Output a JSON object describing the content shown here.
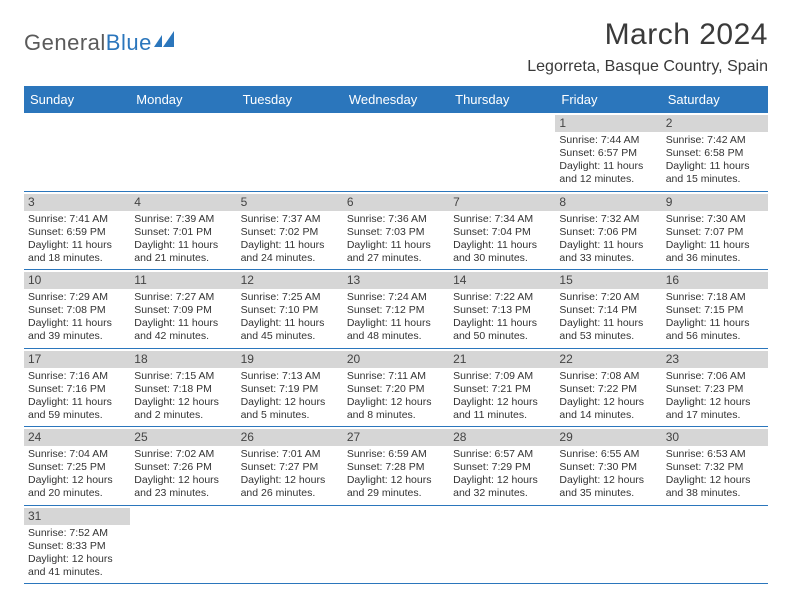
{
  "logo": {
    "text1": "General",
    "text2": "Blue"
  },
  "title": "March 2024",
  "location": "Legorreta, Basque Country, Spain",
  "colors": {
    "accent": "#2b76bc",
    "daybar": "#d6d6d6",
    "text": "#333333",
    "bg": "#ffffff"
  },
  "day_headers": [
    "Sunday",
    "Monday",
    "Tuesday",
    "Wednesday",
    "Thursday",
    "Friday",
    "Saturday"
  ],
  "weeks": [
    [
      null,
      null,
      null,
      null,
      null,
      {
        "day": "1",
        "sunrise": "Sunrise: 7:44 AM",
        "sunset": "Sunset: 6:57 PM",
        "daylight1": "Daylight: 11 hours",
        "daylight2": "and 12 minutes."
      },
      {
        "day": "2",
        "sunrise": "Sunrise: 7:42 AM",
        "sunset": "Sunset: 6:58 PM",
        "daylight1": "Daylight: 11 hours",
        "daylight2": "and 15 minutes."
      }
    ],
    [
      {
        "day": "3",
        "sunrise": "Sunrise: 7:41 AM",
        "sunset": "Sunset: 6:59 PM",
        "daylight1": "Daylight: 11 hours",
        "daylight2": "and 18 minutes."
      },
      {
        "day": "4",
        "sunrise": "Sunrise: 7:39 AM",
        "sunset": "Sunset: 7:01 PM",
        "daylight1": "Daylight: 11 hours",
        "daylight2": "and 21 minutes."
      },
      {
        "day": "5",
        "sunrise": "Sunrise: 7:37 AM",
        "sunset": "Sunset: 7:02 PM",
        "daylight1": "Daylight: 11 hours",
        "daylight2": "and 24 minutes."
      },
      {
        "day": "6",
        "sunrise": "Sunrise: 7:36 AM",
        "sunset": "Sunset: 7:03 PM",
        "daylight1": "Daylight: 11 hours",
        "daylight2": "and 27 minutes."
      },
      {
        "day": "7",
        "sunrise": "Sunrise: 7:34 AM",
        "sunset": "Sunset: 7:04 PM",
        "daylight1": "Daylight: 11 hours",
        "daylight2": "and 30 minutes."
      },
      {
        "day": "8",
        "sunrise": "Sunrise: 7:32 AM",
        "sunset": "Sunset: 7:06 PM",
        "daylight1": "Daylight: 11 hours",
        "daylight2": "and 33 minutes."
      },
      {
        "day": "9",
        "sunrise": "Sunrise: 7:30 AM",
        "sunset": "Sunset: 7:07 PM",
        "daylight1": "Daylight: 11 hours",
        "daylight2": "and 36 minutes."
      }
    ],
    [
      {
        "day": "10",
        "sunrise": "Sunrise: 7:29 AM",
        "sunset": "Sunset: 7:08 PM",
        "daylight1": "Daylight: 11 hours",
        "daylight2": "and 39 minutes."
      },
      {
        "day": "11",
        "sunrise": "Sunrise: 7:27 AM",
        "sunset": "Sunset: 7:09 PM",
        "daylight1": "Daylight: 11 hours",
        "daylight2": "and 42 minutes."
      },
      {
        "day": "12",
        "sunrise": "Sunrise: 7:25 AM",
        "sunset": "Sunset: 7:10 PM",
        "daylight1": "Daylight: 11 hours",
        "daylight2": "and 45 minutes."
      },
      {
        "day": "13",
        "sunrise": "Sunrise: 7:24 AM",
        "sunset": "Sunset: 7:12 PM",
        "daylight1": "Daylight: 11 hours",
        "daylight2": "and 48 minutes."
      },
      {
        "day": "14",
        "sunrise": "Sunrise: 7:22 AM",
        "sunset": "Sunset: 7:13 PM",
        "daylight1": "Daylight: 11 hours",
        "daylight2": "and 50 minutes."
      },
      {
        "day": "15",
        "sunrise": "Sunrise: 7:20 AM",
        "sunset": "Sunset: 7:14 PM",
        "daylight1": "Daylight: 11 hours",
        "daylight2": "and 53 minutes."
      },
      {
        "day": "16",
        "sunrise": "Sunrise: 7:18 AM",
        "sunset": "Sunset: 7:15 PM",
        "daylight1": "Daylight: 11 hours",
        "daylight2": "and 56 minutes."
      }
    ],
    [
      {
        "day": "17",
        "sunrise": "Sunrise: 7:16 AM",
        "sunset": "Sunset: 7:16 PM",
        "daylight1": "Daylight: 11 hours",
        "daylight2": "and 59 minutes."
      },
      {
        "day": "18",
        "sunrise": "Sunrise: 7:15 AM",
        "sunset": "Sunset: 7:18 PM",
        "daylight1": "Daylight: 12 hours",
        "daylight2": "and 2 minutes."
      },
      {
        "day": "19",
        "sunrise": "Sunrise: 7:13 AM",
        "sunset": "Sunset: 7:19 PM",
        "daylight1": "Daylight: 12 hours",
        "daylight2": "and 5 minutes."
      },
      {
        "day": "20",
        "sunrise": "Sunrise: 7:11 AM",
        "sunset": "Sunset: 7:20 PM",
        "daylight1": "Daylight: 12 hours",
        "daylight2": "and 8 minutes."
      },
      {
        "day": "21",
        "sunrise": "Sunrise: 7:09 AM",
        "sunset": "Sunset: 7:21 PM",
        "daylight1": "Daylight: 12 hours",
        "daylight2": "and 11 minutes."
      },
      {
        "day": "22",
        "sunrise": "Sunrise: 7:08 AM",
        "sunset": "Sunset: 7:22 PM",
        "daylight1": "Daylight: 12 hours",
        "daylight2": "and 14 minutes."
      },
      {
        "day": "23",
        "sunrise": "Sunrise: 7:06 AM",
        "sunset": "Sunset: 7:23 PM",
        "daylight1": "Daylight: 12 hours",
        "daylight2": "and 17 minutes."
      }
    ],
    [
      {
        "day": "24",
        "sunrise": "Sunrise: 7:04 AM",
        "sunset": "Sunset: 7:25 PM",
        "daylight1": "Daylight: 12 hours",
        "daylight2": "and 20 minutes."
      },
      {
        "day": "25",
        "sunrise": "Sunrise: 7:02 AM",
        "sunset": "Sunset: 7:26 PM",
        "daylight1": "Daylight: 12 hours",
        "daylight2": "and 23 minutes."
      },
      {
        "day": "26",
        "sunrise": "Sunrise: 7:01 AM",
        "sunset": "Sunset: 7:27 PM",
        "daylight1": "Daylight: 12 hours",
        "daylight2": "and 26 minutes."
      },
      {
        "day": "27",
        "sunrise": "Sunrise: 6:59 AM",
        "sunset": "Sunset: 7:28 PM",
        "daylight1": "Daylight: 12 hours",
        "daylight2": "and 29 minutes."
      },
      {
        "day": "28",
        "sunrise": "Sunrise: 6:57 AM",
        "sunset": "Sunset: 7:29 PM",
        "daylight1": "Daylight: 12 hours",
        "daylight2": "and 32 minutes."
      },
      {
        "day": "29",
        "sunrise": "Sunrise: 6:55 AM",
        "sunset": "Sunset: 7:30 PM",
        "daylight1": "Daylight: 12 hours",
        "daylight2": "and 35 minutes."
      },
      {
        "day": "30",
        "sunrise": "Sunrise: 6:53 AM",
        "sunset": "Sunset: 7:32 PM",
        "daylight1": "Daylight: 12 hours",
        "daylight2": "and 38 minutes."
      }
    ],
    [
      {
        "day": "31",
        "sunrise": "Sunrise: 7:52 AM",
        "sunset": "Sunset: 8:33 PM",
        "daylight1": "Daylight: 12 hours",
        "daylight2": "and 41 minutes."
      },
      null,
      null,
      null,
      null,
      null,
      null
    ]
  ]
}
